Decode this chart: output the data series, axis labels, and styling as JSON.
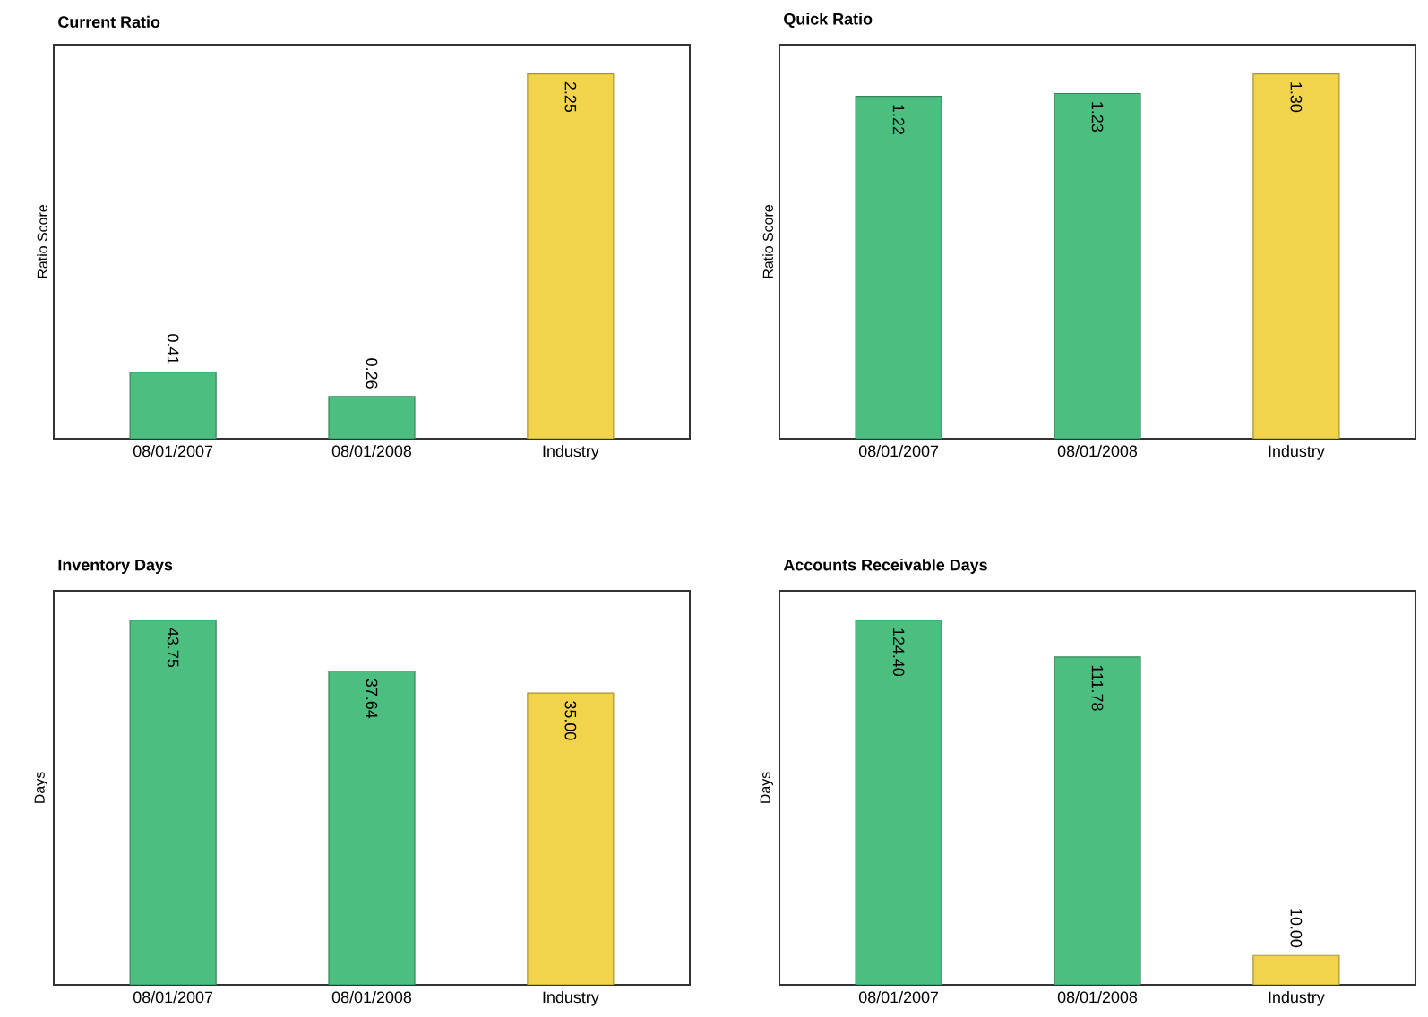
{
  "chart_data": [
    {
      "type": "bar",
      "title": "Current Ratio",
      "ylabel": "Ratio Score",
      "categories": [
        "08/01/2007",
        "08/01/2008",
        "Industry"
      ],
      "values": [
        0.41,
        0.26,
        2.25
      ],
      "colors": [
        "#4cbf80",
        "#4cbf80",
        "#f2d34c"
      ],
      "value_labels": [
        "0.41",
        "0.26",
        "2.25"
      ],
      "tick_labels": "x"
    },
    {
      "type": "bar",
      "title": "Quick Ratio",
      "ylabel": "Ratio Score",
      "categories": [
        "08/01/2007",
        "08/01/2008",
        "Industry"
      ],
      "values": [
        1.22,
        1.23,
        1.3
      ],
      "colors": [
        "#4cbf80",
        "#4cbf80",
        "#f2d34c"
      ],
      "value_labels": [
        "1.22",
        "1.23",
        "1.30"
      ],
      "tick_labels": "x"
    },
    {
      "type": "bar",
      "title": "Inventory Days",
      "ylabel": "Days",
      "categories": [
        "08/01/2007",
        "08/01/2008",
        "Industry"
      ],
      "values": [
        43.75,
        37.64,
        35.0
      ],
      "colors": [
        "#4cbf80",
        "#4cbf80",
        "#f2d34c"
      ],
      "value_labels": [
        "43.75",
        "37.64",
        "35.00"
      ],
      "tick_labels": "x"
    },
    {
      "type": "bar",
      "title": "Accounts Receivable Days",
      "ylabel": "Days",
      "categories": [
        "08/01/2007",
        "08/01/2008",
        "Industry"
      ],
      "values": [
        124.4,
        111.78,
        10.0
      ],
      "colors": [
        "#4cbf80",
        "#4cbf80",
        "#f2d34c"
      ],
      "value_labels": [
        "124.40",
        "111.78",
        "10.00"
      ],
      "tick_labels": "x"
    }
  ]
}
